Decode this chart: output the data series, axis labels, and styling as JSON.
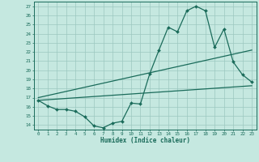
{
  "xlabel": "Humidex (Indice chaleur)",
  "background_color": "#c5e8e0",
  "line_color": "#1a6b5a",
  "grid_color": "#9cc8c0",
  "xlim": [
    -0.5,
    23.5
  ],
  "ylim": [
    13.5,
    27.5
  ],
  "xticks": [
    0,
    1,
    2,
    3,
    4,
    5,
    6,
    7,
    8,
    9,
    10,
    11,
    12,
    13,
    14,
    15,
    16,
    17,
    18,
    19,
    20,
    21,
    22,
    23
  ],
  "yticks": [
    14,
    15,
    16,
    17,
    18,
    19,
    20,
    21,
    22,
    23,
    24,
    25,
    26,
    27
  ],
  "curve1_x": [
    0,
    1,
    2,
    3,
    4,
    5,
    6,
    7,
    8,
    9,
    10,
    11,
    12,
    13,
    14,
    15,
    16,
    17,
    18,
    19,
    20,
    21,
    22,
    23
  ],
  "curve1_y": [
    16.7,
    16.1,
    15.7,
    15.7,
    15.5,
    14.9,
    13.9,
    13.7,
    14.2,
    14.4,
    16.4,
    16.3,
    19.6,
    22.2,
    24.7,
    24.2,
    26.5,
    27.0,
    26.5,
    22.5,
    24.5,
    20.9,
    19.5,
    18.7
  ],
  "curve2_x": [
    0,
    23
  ],
  "curve2_y": [
    16.7,
    18.3
  ],
  "curve3_x": [
    0,
    23
  ],
  "curve3_y": [
    17.0,
    22.2
  ],
  "markersize": 2.0,
  "linewidth": 0.9
}
